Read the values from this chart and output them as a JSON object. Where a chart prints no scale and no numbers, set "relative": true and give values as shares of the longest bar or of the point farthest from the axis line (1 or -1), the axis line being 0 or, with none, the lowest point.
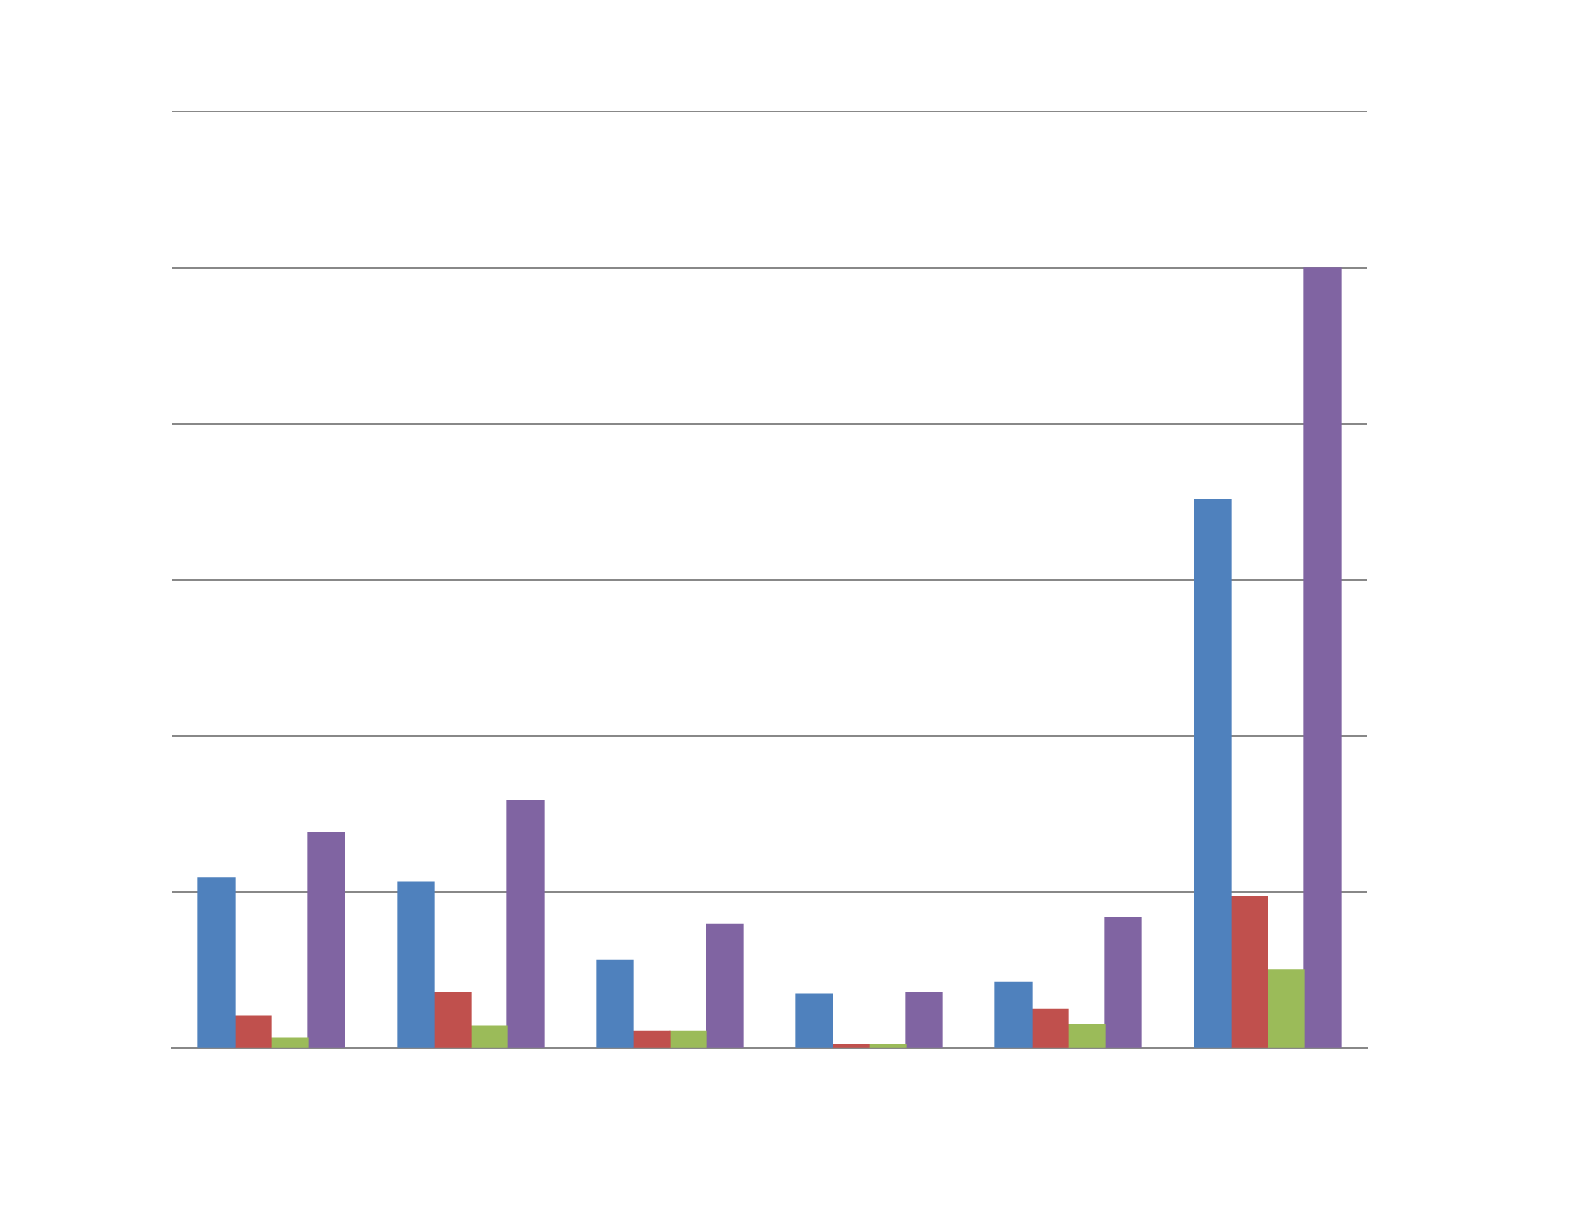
{
  "chart_data": {
    "type": "bar",
    "relative": true,
    "grid": "y",
    "legend": false,
    "categories": [
      null,
      null,
      null,
      null,
      null,
      null
    ],
    "series": [
      {
        "color": "#4f81bd",
        "values": [
          0.218,
          0.213,
          0.112,
          0.069,
          0.084,
          0.703
        ]
      },
      {
        "color": "#c0504d",
        "values": [
          0.041,
          0.071,
          0.022,
          0.004,
          0.05,
          0.194
        ]
      },
      {
        "color": "#9bbb59",
        "values": [
          0.013,
          0.028,
          0.022,
          0,
          0.03,
          0.101
        ]
      },
      {
        "color": "#8064a2",
        "values": [
          0.276,
          0.317,
          0.159,
          0.071,
          0.168,
          1
        ]
      }
    ]
  }
}
